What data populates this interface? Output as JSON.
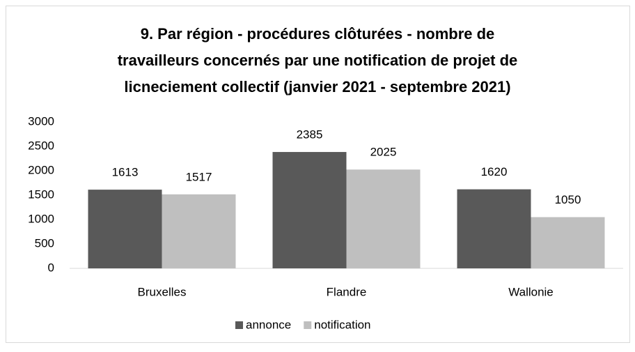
{
  "chart_data": {
    "type": "bar",
    "title": [
      "9. Par région - procédures clôturées - nombre de",
      "travailleurs concernés par une notification de projet de",
      "licneciement collectif (janvier 2021 - septembre 2021)"
    ],
    "categories": [
      "Bruxelles",
      "Flandre",
      "Wallonie"
    ],
    "series": [
      {
        "name": "annonce",
        "color": "#595959",
        "values": [
          1613,
          2385,
          1620
        ]
      },
      {
        "name": "notification",
        "color": "#bfbfbf",
        "values": [
          1517,
          2025,
          1050
        ]
      }
    ],
    "ylim": [
      0,
      3000
    ],
    "yticks": [
      0,
      500,
      1000,
      1500,
      2000,
      2500,
      3000
    ],
    "grid": false,
    "legend": "bottom"
  }
}
